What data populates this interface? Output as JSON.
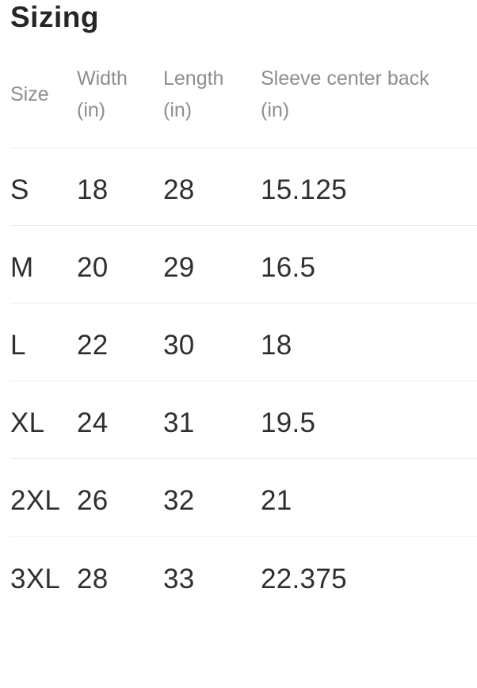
{
  "page": {
    "title": "Sizing"
  },
  "table": {
    "columns": [
      {
        "id": "size",
        "label": "Size",
        "unit": ""
      },
      {
        "id": "width",
        "label": "Width",
        "unit": "(in)"
      },
      {
        "id": "length",
        "label": "Length",
        "unit": "(in)"
      },
      {
        "id": "sleeve",
        "label": "Sleeve center back",
        "unit": "(in)"
      }
    ],
    "rows": [
      {
        "size": "S",
        "width": "18",
        "length": "28",
        "sleeve": "15.125"
      },
      {
        "size": "M",
        "width": "20",
        "length": "29",
        "sleeve": "16.5"
      },
      {
        "size": "L",
        "width": "22",
        "length": "30",
        "sleeve": "18"
      },
      {
        "size": "XL",
        "width": "24",
        "length": "31",
        "sleeve": "19.5"
      },
      {
        "size": "2XL",
        "width": "26",
        "length": "32",
        "sleeve": "21"
      },
      {
        "size": "3XL",
        "width": "28",
        "length": "33",
        "sleeve": "22.375"
      }
    ]
  },
  "colors": {
    "background": "#ffffff",
    "title_text": "#262626",
    "header_text": "#8e8e8e",
    "data_text": "#2f2f2f",
    "divider": "#ededed"
  }
}
